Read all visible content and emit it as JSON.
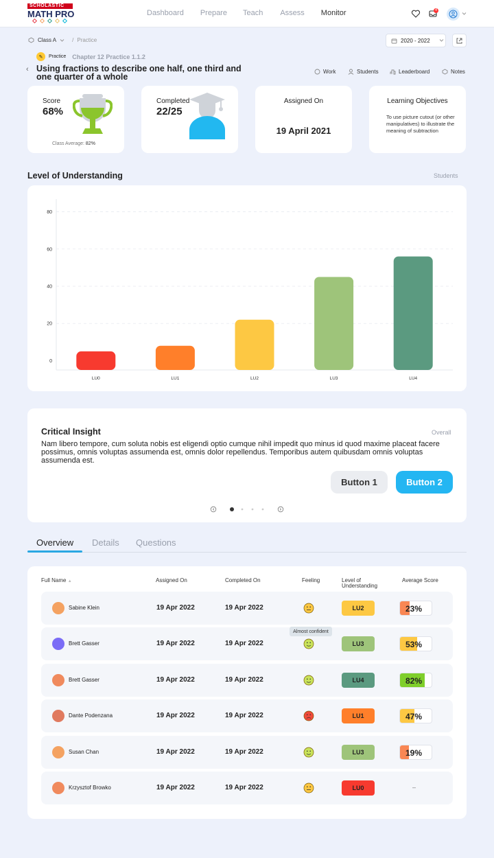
{
  "brand": {
    "publisher": "SCHOLASTIC",
    "product": "MATH PRO"
  },
  "nav": {
    "items": [
      "Dashboard",
      "Prepare",
      "Teach",
      "Assess",
      "Monitor"
    ],
    "active": "Monitor"
  },
  "notifications": {
    "count": "4"
  },
  "breadcrumb": {
    "class": "Class A",
    "separator": "/",
    "page": "Practice"
  },
  "year_range": "2020 - 2022",
  "assignment": {
    "type": "Practice",
    "chapter": "Chapter 12 Practice 1.1.2",
    "title": "Using fractions to describe one half, one third and one quarter of a whole"
  },
  "actions": [
    "Work",
    "Students",
    "Leaderboard",
    "Notes"
  ],
  "cards": {
    "score": {
      "label": "Score",
      "value": "68%",
      "class_avg_label": "Class Average:",
      "class_avg": "82%"
    },
    "completed": {
      "label": "Completed",
      "value": "22/25"
    },
    "assigned": {
      "label": "Assigned On",
      "value": "19 April 2021"
    },
    "objectives": {
      "label": "Learning Objectives",
      "text": "To use picture cutout (or other manipulatives) to illustrate the meaning of subtraction"
    }
  },
  "understanding": {
    "title": "Level of Understanding",
    "link": "Students"
  },
  "chart_data": {
    "type": "bar",
    "categories": [
      "LU0",
      "LU1",
      "LU2",
      "LU3",
      "LU4"
    ],
    "values": [
      5,
      8,
      22,
      45,
      56
    ],
    "colors": [
      "#f73a2f",
      "#ff7f2a",
      "#fdc843",
      "#9ec47a",
      "#5b9a80"
    ],
    "ylim": [
      -5,
      85
    ],
    "yticks": [
      0,
      20,
      40,
      60,
      80
    ],
    "grid": true
  },
  "insight": {
    "title": "Critical Insight",
    "link": "Overall",
    "text": "Nam libero tempore, cum soluta nobis est eligendi optio cumque nihil impedit quo minus id quod maxime placeat facere possimus, omnis voluptas assumenda est, omnis dolor repellendus. Temporibus autem quibusdam omnis voluptas assumenda est.",
    "button1": "Button 1",
    "button2": "Button 2"
  },
  "tabs": [
    "Overview",
    "Details",
    "Questions"
  ],
  "table": {
    "headers": [
      "Full Name",
      "Assigned On",
      "Completed On",
      "Feeling",
      "Level of Understanding",
      "Average Score"
    ],
    "tooltip": "Almost confident",
    "rows": [
      {
        "name": "Sabine Klein",
        "assigned": "19 Apr 2022",
        "completed": "19 Apr 2022",
        "feeling": "neutral",
        "lu": "LU2",
        "lu_color": "#fdc843",
        "score": "23%",
        "score_pct": 0.3,
        "score_color": "#f98754"
      },
      {
        "name": "Brett Gasser",
        "assigned": "19 Apr 2022",
        "completed": "19 Apr 2022",
        "feeling": "happy",
        "lu": "LU3",
        "lu_color": "#9ec47a",
        "score": "53%",
        "score_pct": 0.55,
        "score_color": "#fdc843"
      },
      {
        "name": "Brett Gasser",
        "assigned": "19 Apr 2022",
        "completed": "19 Apr 2022",
        "feeling": "happy",
        "lu": "LU4",
        "lu_color": "#5b9a80",
        "score": "82%",
        "score_pct": 0.78,
        "score_color": "#7fcf2b"
      },
      {
        "name": "Dante Podenzana",
        "assigned": "19 Apr 2022",
        "completed": "19 Apr 2022",
        "feeling": "sad",
        "lu": "LU1",
        "lu_color": "#ff7f2a",
        "score": "47%",
        "score_pct": 0.45,
        "score_color": "#fdc843"
      },
      {
        "name": "Susan Chan",
        "assigned": "19 Apr 2022",
        "completed": "19 Apr 2022",
        "feeling": "happy",
        "lu": "LU3",
        "lu_color": "#9ec47a",
        "score": "19%",
        "score_pct": 0.28,
        "score_color": "#f98754"
      },
      {
        "name": "Krzysztof Browko",
        "assigned": "19 Apr 2022",
        "completed": "19 Apr 2022",
        "feeling": "neutral",
        "lu": "LU0",
        "lu_color": "#f73a2f",
        "score": "–",
        "score_pct": 0,
        "score_color": ""
      }
    ]
  }
}
